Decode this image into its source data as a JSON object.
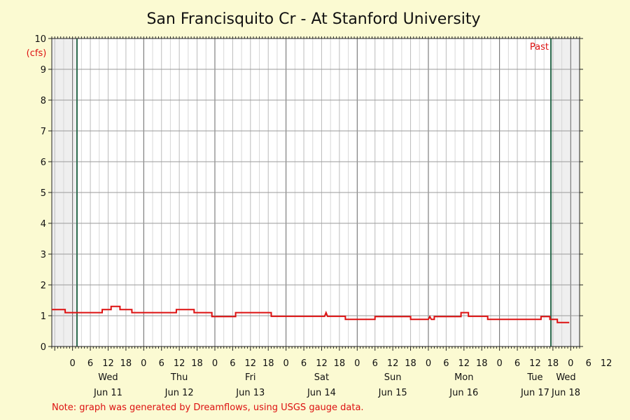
{
  "chart_data": {
    "type": "line",
    "title": "San Francisquito Cr - At Stanford University",
    "ylabel": "(cfs)",
    "ylim": [
      0,
      10
    ],
    "yticks": [
      "0",
      "1",
      "2",
      "3",
      "4",
      "5",
      "6",
      "7",
      "8",
      "9",
      "10"
    ],
    "xlim_hours": [
      -7,
      171
    ],
    "x_hour_labels": [
      "0",
      "6",
      "12",
      "18",
      "0",
      "6",
      "12",
      "18",
      "0",
      "6",
      "12",
      "18",
      "0",
      "6",
      "12",
      "18",
      "0",
      "6",
      "12",
      "18",
      "0",
      "6",
      "12",
      "18",
      "0",
      "6",
      "12",
      "18",
      "0",
      "6",
      "12"
    ],
    "days": [
      {
        "weekday": "Wed",
        "date": "Jun 11"
      },
      {
        "weekday": "Thu",
        "date": "Jun 12"
      },
      {
        "weekday": "Fri",
        "date": "Jun 13"
      },
      {
        "weekday": "Sat",
        "date": "Jun 14"
      },
      {
        "weekday": "Sun",
        "date": "Jun 15"
      },
      {
        "weekday": "Mon",
        "date": "Jun 16"
      },
      {
        "weekday": "Tue",
        "date": "Jun 17"
      },
      {
        "weekday": "Wed",
        "date": "Jun 18"
      }
    ],
    "past_label": "Past",
    "grid": true,
    "series": [
      {
        "color": "#dd1111",
        "points": [
          [
            -7,
            1.2
          ],
          [
            -2.5,
            1.2
          ],
          [
            -2.5,
            1.1
          ],
          [
            10,
            1.1
          ],
          [
            10,
            1.2
          ],
          [
            13,
            1.2
          ],
          [
            13,
            1.3
          ],
          [
            16,
            1.3
          ],
          [
            16,
            1.2
          ],
          [
            20,
            1.2
          ],
          [
            20,
            1.1
          ],
          [
            35,
            1.1
          ],
          [
            35,
            1.2
          ],
          [
            41,
            1.2
          ],
          [
            41,
            1.1
          ],
          [
            47,
            1.1
          ],
          [
            47,
            0.97
          ],
          [
            55,
            0.97
          ],
          [
            55,
            1.1
          ],
          [
            67,
            1.1
          ],
          [
            67,
            0.98
          ],
          [
            85,
            0.98
          ],
          [
            85.5,
            1.1
          ],
          [
            86,
            0.98
          ],
          [
            92,
            0.98
          ],
          [
            92,
            0.88
          ],
          [
            102,
            0.88
          ],
          [
            102,
            0.97
          ],
          [
            114,
            0.97
          ],
          [
            114,
            0.88
          ],
          [
            120,
            0.88
          ],
          [
            120.5,
            0.97
          ],
          [
            121,
            0.88
          ],
          [
            122,
            0.88
          ],
          [
            122,
            0.97
          ],
          [
            131,
            0.97
          ],
          [
            131,
            1.1
          ],
          [
            133.5,
            1.1
          ],
          [
            133.5,
            0.98
          ],
          [
            140,
            0.98
          ],
          [
            140,
            0.88
          ],
          [
            158,
            0.88
          ],
          [
            158,
            0.97
          ],
          [
            161,
            0.97
          ],
          [
            161,
            0.88
          ],
          [
            163.5,
            0.88
          ],
          [
            163.5,
            0.78
          ],
          [
            167.5,
            0.78
          ]
        ]
      }
    ]
  },
  "footer": {
    "note": "Note: graph was generated by Dreamflows, using USGS gauge data."
  }
}
